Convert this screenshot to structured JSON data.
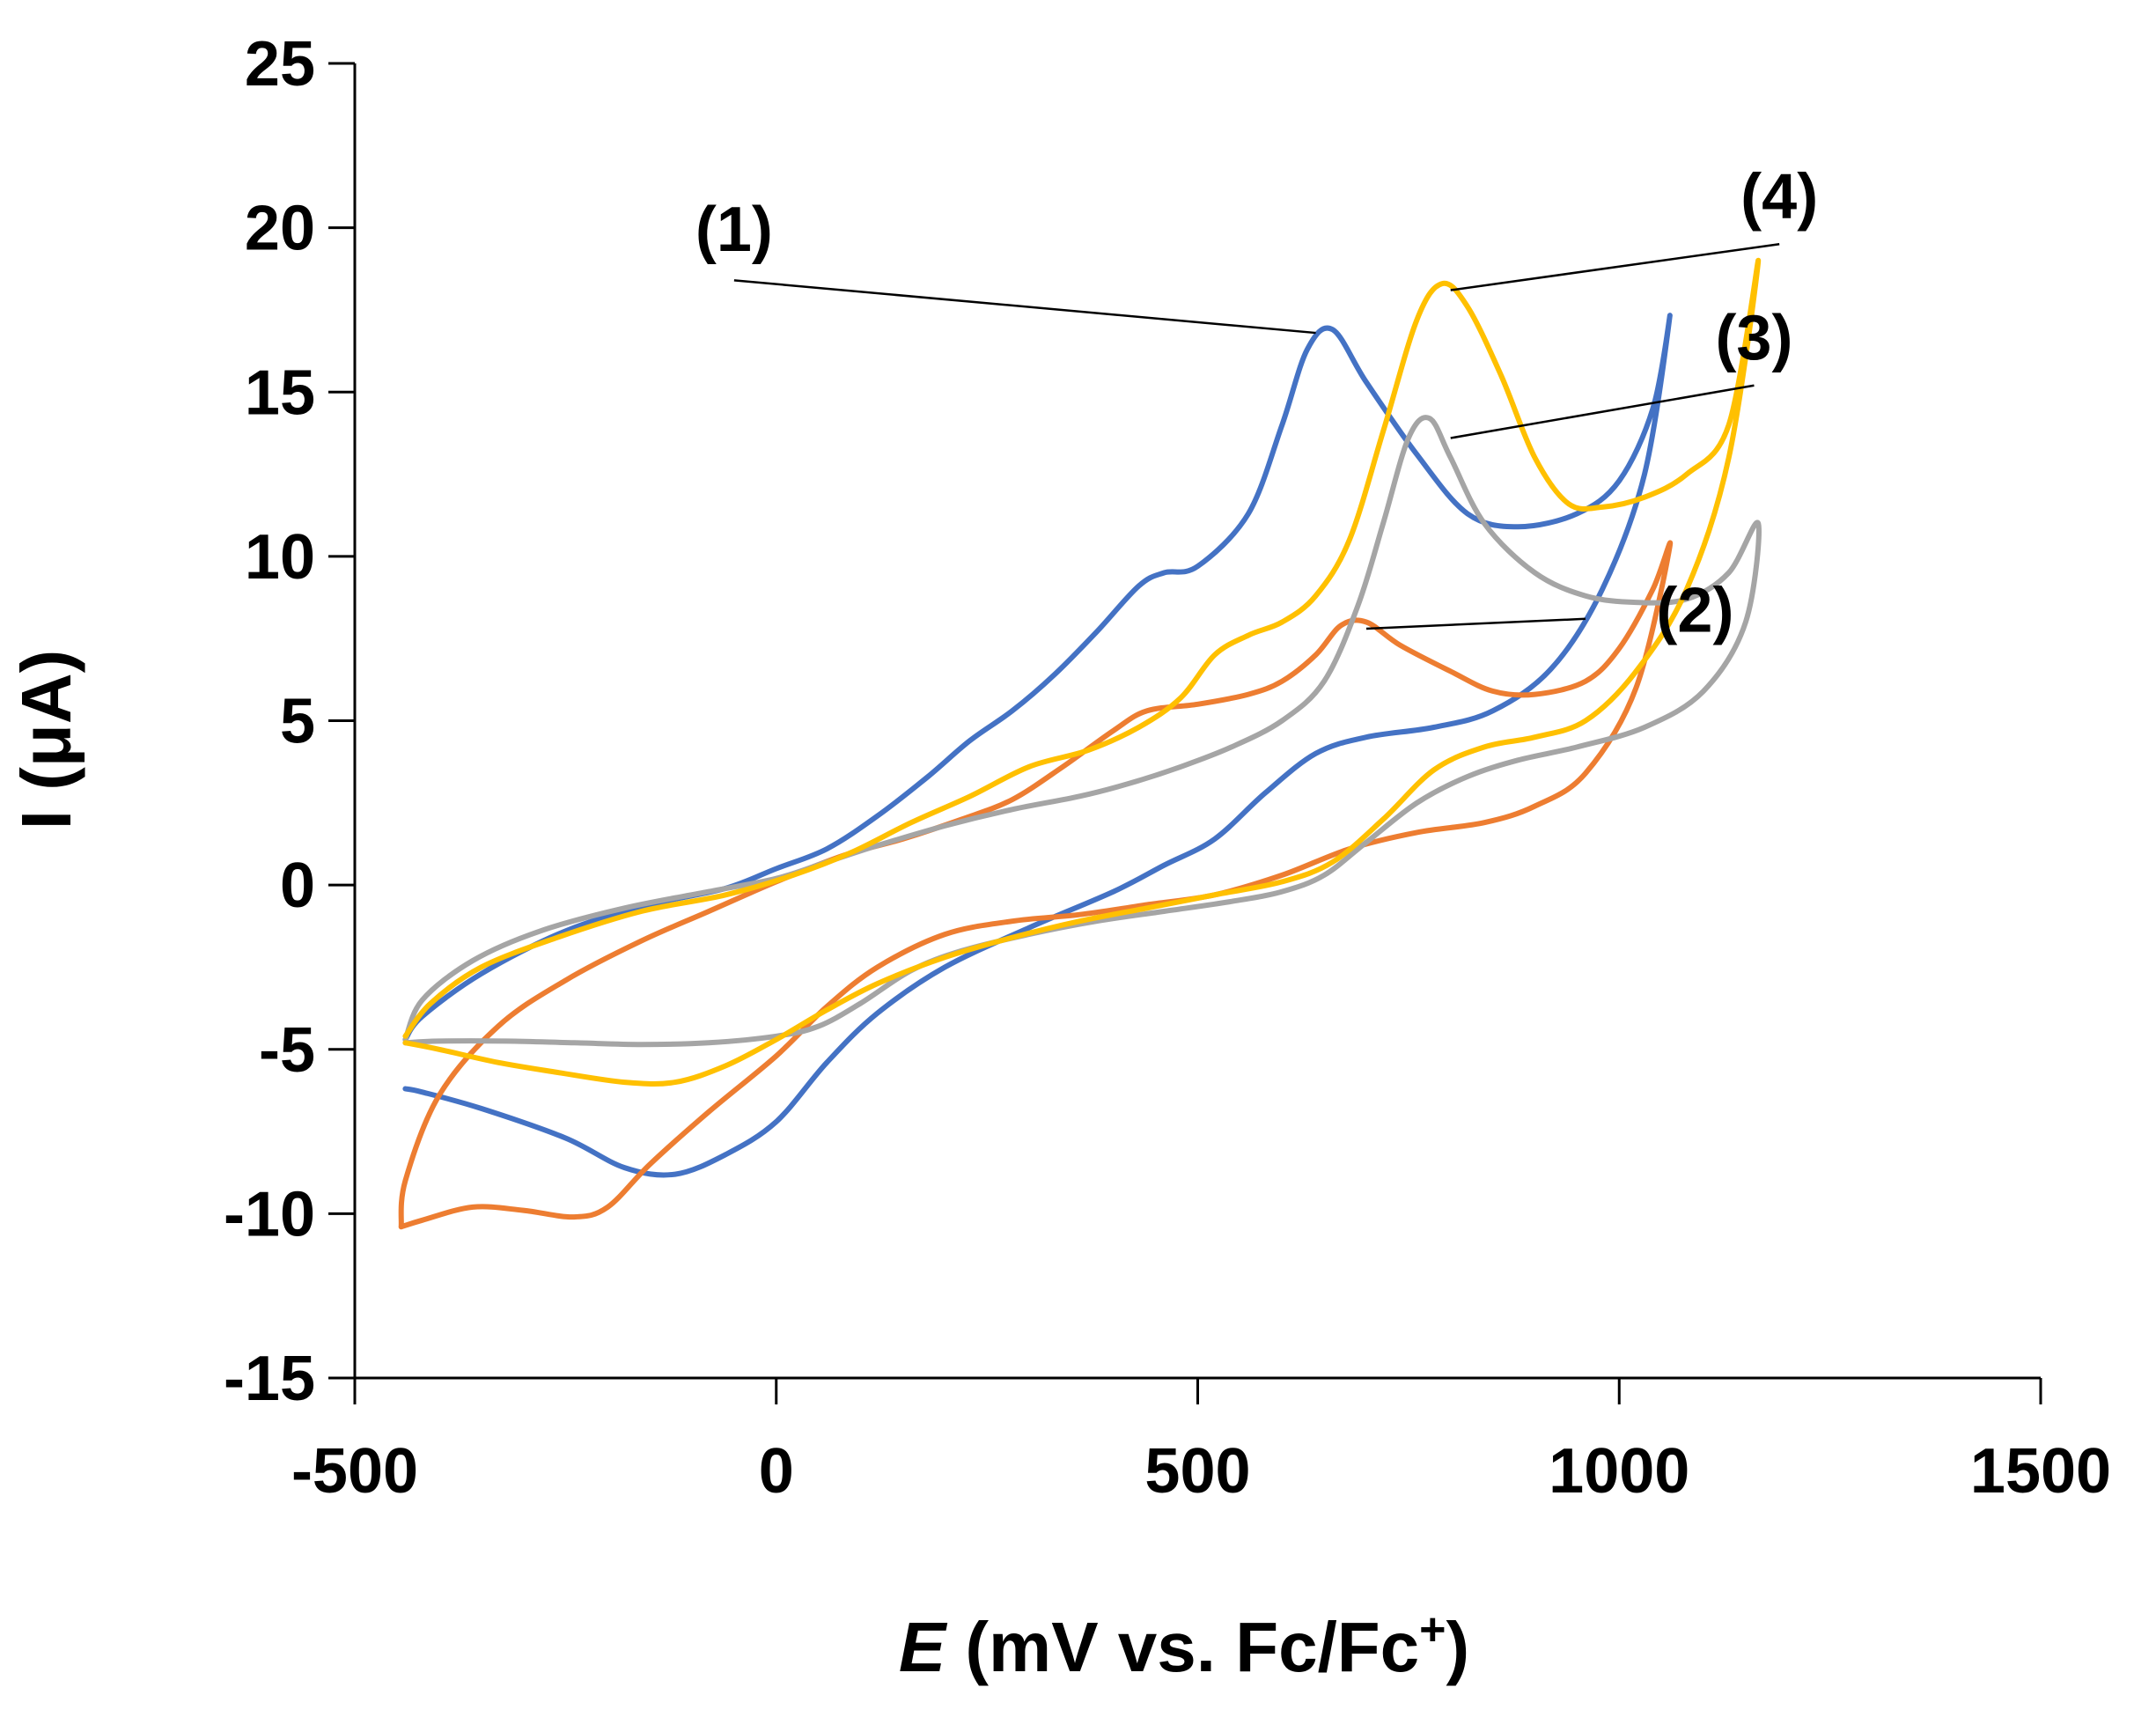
{
  "chart_data": {
    "type": "line",
    "title": "",
    "xlabel_italic": "E",
    "xlabel_rest": " (mV vs. Fc/Fc",
    "xlabel_sup": "+",
    "xlabel_close": ")",
    "ylabel": "I (μA)",
    "xlim": [
      -500,
      1500
    ],
    "ylim": [
      -15,
      25
    ],
    "xticks": [
      -500,
      0,
      500,
      1000,
      1500
    ],
    "yticks": [
      -15,
      -10,
      -5,
      0,
      5,
      10,
      15,
      20,
      25
    ],
    "grid": false,
    "legend": "none",
    "series": [
      {
        "name": "(1)",
        "color": "#4472C4",
        "points": [
          [
            -440,
            -6.2
          ],
          [
            -420,
            -6.3
          ],
          [
            -350,
            -6.8
          ],
          [
            -250,
            -7.7
          ],
          [
            -180,
            -8.6
          ],
          [
            -120,
            -8.8
          ],
          [
            -60,
            -8.2
          ],
          [
            0,
            -7.2
          ],
          [
            60,
            -5.4
          ],
          [
            120,
            -3.9
          ],
          [
            200,
            -2.5
          ],
          [
            300,
            -1.3
          ],
          [
            400,
            -0.2
          ],
          [
            460,
            0.6
          ],
          [
            520,
            1.4
          ],
          [
            580,
            2.8
          ],
          [
            640,
            4.0
          ],
          [
            700,
            4.5
          ],
          [
            780,
            4.8
          ],
          [
            850,
            5.3
          ],
          [
            920,
            6.6
          ],
          [
            980,
            9.0
          ],
          [
            1030,
            12.5
          ],
          [
            1060,
            17.3
          ],
          [
            1040,
            14.5
          ],
          [
            1000,
            12.3
          ],
          [
            950,
            11.3
          ],
          [
            880,
            10.9
          ],
          [
            820,
            11.3
          ],
          [
            760,
            13.1
          ],
          [
            700,
            15.3
          ],
          [
            660,
            16.9
          ],
          [
            630,
            16.3
          ],
          [
            600,
            14.0
          ],
          [
            560,
            11.3
          ],
          [
            500,
            9.7
          ],
          [
            460,
            9.5
          ],
          [
            430,
            9.1
          ],
          [
            380,
            7.7
          ],
          [
            330,
            6.4
          ],
          [
            280,
            5.3
          ],
          [
            230,
            4.4
          ],
          [
            180,
            3.3
          ],
          [
            120,
            2.1
          ],
          [
            60,
            1.1
          ],
          [
            0,
            0.5
          ],
          [
            -60,
            -0.1
          ],
          [
            -150,
            -0.6
          ],
          [
            -250,
            -1.4
          ],
          [
            -350,
            -2.7
          ],
          [
            -420,
            -4.0
          ],
          [
            -440,
            -4.7
          ]
        ]
      },
      {
        "name": "(2)",
        "color": "#ED7D31",
        "points": [
          [
            -445,
            -10.4
          ],
          [
            -420,
            -10.2
          ],
          [
            -360,
            -9.8
          ],
          [
            -300,
            -9.9
          ],
          [
            -240,
            -10.1
          ],
          [
            -200,
            -9.8
          ],
          [
            -150,
            -8.5
          ],
          [
            -80,
            -6.9
          ],
          [
            0,
            -5.2
          ],
          [
            60,
            -3.7
          ],
          [
            120,
            -2.5
          ],
          [
            200,
            -1.5
          ],
          [
            280,
            -1.1
          ],
          [
            360,
            -0.9
          ],
          [
            440,
            -0.6
          ],
          [
            520,
            -0.3
          ],
          [
            600,
            0.3
          ],
          [
            680,
            1.1
          ],
          [
            760,
            1.6
          ],
          [
            840,
            1.9
          ],
          [
            900,
            2.4
          ],
          [
            960,
            3.4
          ],
          [
            1020,
            6.0
          ],
          [
            1060,
            10.3
          ],
          [
            1040,
            9.0
          ],
          [
            1000,
            7.2
          ],
          [
            960,
            6.2
          ],
          [
            900,
            5.8
          ],
          [
            850,
            5.9
          ],
          [
            800,
            6.5
          ],
          [
            740,
            7.3
          ],
          [
            700,
            8.0
          ],
          [
            670,
            7.9
          ],
          [
            640,
            7.0
          ],
          [
            600,
            6.2
          ],
          [
            560,
            5.8
          ],
          [
            500,
            5.5
          ],
          [
            440,
            5.3
          ],
          [
            400,
            4.7
          ],
          [
            340,
            3.6
          ],
          [
            280,
            2.6
          ],
          [
            220,
            2.0
          ],
          [
            150,
            1.4
          ],
          [
            80,
            0.9
          ],
          [
            0,
            0.1
          ],
          [
            -80,
            -0.8
          ],
          [
            -160,
            -1.7
          ],
          [
            -250,
            -2.9
          ],
          [
            -330,
            -4.3
          ],
          [
            -400,
            -6.4
          ],
          [
            -440,
            -9.0
          ],
          [
            -445,
            -10.4
          ]
        ]
      },
      {
        "name": "(3)",
        "color": "#A5A5A5",
        "points": [
          [
            -440,
            -4.8
          ],
          [
            -400,
            -4.75
          ],
          [
            -320,
            -4.75
          ],
          [
            -240,
            -4.8
          ],
          [
            -160,
            -4.85
          ],
          [
            -80,
            -4.8
          ],
          [
            0,
            -4.6
          ],
          [
            50,
            -4.3
          ],
          [
            100,
            -3.6
          ],
          [
            160,
            -2.6
          ],
          [
            220,
            -2.0
          ],
          [
            300,
            -1.5
          ],
          [
            380,
            -1.1
          ],
          [
            460,
            -0.8
          ],
          [
            540,
            -0.5
          ],
          [
            600,
            -0.2
          ],
          [
            650,
            0.3
          ],
          [
            700,
            1.3
          ],
          [
            760,
            2.5
          ],
          [
            820,
            3.3
          ],
          [
            880,
            3.8
          ],
          [
            950,
            4.2
          ],
          [
            1030,
            4.8
          ],
          [
            1100,
            5.9
          ],
          [
            1150,
            8.0
          ],
          [
            1165,
            11.0
          ],
          [
            1130,
            9.5
          ],
          [
            1080,
            8.7
          ],
          [
            1020,
            8.6
          ],
          [
            960,
            8.8
          ],
          [
            900,
            9.5
          ],
          [
            840,
            11.0
          ],
          [
            800,
            13.0
          ],
          [
            775,
            14.2
          ],
          [
            750,
            13.6
          ],
          [
            720,
            11.0
          ],
          [
            690,
            8.5
          ],
          [
            650,
            6.2
          ],
          [
            600,
            5.0
          ],
          [
            540,
            4.2
          ],
          [
            480,
            3.6
          ],
          [
            420,
            3.1
          ],
          [
            360,
            2.7
          ],
          [
            280,
            2.3
          ],
          [
            200,
            1.8
          ],
          [
            120,
            1.2
          ],
          [
            60,
            0.7
          ],
          [
            0,
            0.2
          ],
          [
            -80,
            -0.2
          ],
          [
            -180,
            -0.7
          ],
          [
            -280,
            -1.4
          ],
          [
            -360,
            -2.3
          ],
          [
            -420,
            -3.5
          ],
          [
            -440,
            -4.7
          ]
        ]
      },
      {
        "name": "(4)",
        "color": "#FFC000",
        "points": [
          [
            -440,
            -4.8
          ],
          [
            -400,
            -5.0
          ],
          [
            -330,
            -5.4
          ],
          [
            -260,
            -5.7
          ],
          [
            -180,
            -6.0
          ],
          [
            -120,
            -6.0
          ],
          [
            -60,
            -5.5
          ],
          [
            0,
            -4.7
          ],
          [
            60,
            -3.8
          ],
          [
            120,
            -3.0
          ],
          [
            200,
            -2.2
          ],
          [
            280,
            -1.6
          ],
          [
            360,
            -1.1
          ],
          [
            440,
            -0.7
          ],
          [
            520,
            -0.3
          ],
          [
            600,
            0.1
          ],
          [
            660,
            0.7
          ],
          [
            720,
            2.0
          ],
          [
            780,
            3.5
          ],
          [
            840,
            4.2
          ],
          [
            900,
            4.5
          ],
          [
            960,
            5.0
          ],
          [
            1020,
            6.5
          ],
          [
            1080,
            9.0
          ],
          [
            1130,
            13.0
          ],
          [
            1165,
            19.0
          ],
          [
            1130,
            14.0
          ],
          [
            1080,
            12.5
          ],
          [
            1030,
            11.8
          ],
          [
            980,
            11.5
          ],
          [
            940,
            11.6
          ],
          [
            900,
            13.0
          ],
          [
            860,
            15.5
          ],
          [
            820,
            17.6
          ],
          [
            790,
            18.3
          ],
          [
            760,
            17.2
          ],
          [
            720,
            13.8
          ],
          [
            680,
            10.5
          ],
          [
            640,
            8.8
          ],
          [
            600,
            8.0
          ],
          [
            560,
            7.6
          ],
          [
            520,
            7.0
          ],
          [
            480,
            5.7
          ],
          [
            430,
            4.8
          ],
          [
            370,
            4.1
          ],
          [
            300,
            3.6
          ],
          [
            230,
            2.7
          ],
          [
            160,
            1.9
          ],
          [
            90,
            1.0
          ],
          [
            20,
            0.3
          ],
          [
            -60,
            -0.3
          ],
          [
            -160,
            -0.8
          ],
          [
            -260,
            -1.6
          ],
          [
            -350,
            -2.5
          ],
          [
            -410,
            -3.6
          ],
          [
            -440,
            -4.6
          ]
        ]
      }
    ],
    "annotations": [
      {
        "label": "(1)",
        "text_at": [
          -50,
          19.3
        ],
        "line_from": [
          -50,
          18.4
        ],
        "line_to": [
          640,
          16.8
        ]
      },
      {
        "label": "(2)",
        "text_at": [
          1090,
          7.7
        ],
        "line_from": [
          960,
          8.1
        ],
        "line_to": [
          700,
          7.8
        ]
      },
      {
        "label": "(3)",
        "text_at": [
          1160,
          16.0
        ],
        "line_from": [
          1160,
          15.2
        ],
        "line_to": [
          800,
          13.6
        ]
      },
      {
        "label": "(4)",
        "text_at": [
          1190,
          20.3
        ],
        "line_from": [
          1190,
          19.5
        ],
        "line_to": [
          800,
          18.1
        ]
      }
    ]
  }
}
